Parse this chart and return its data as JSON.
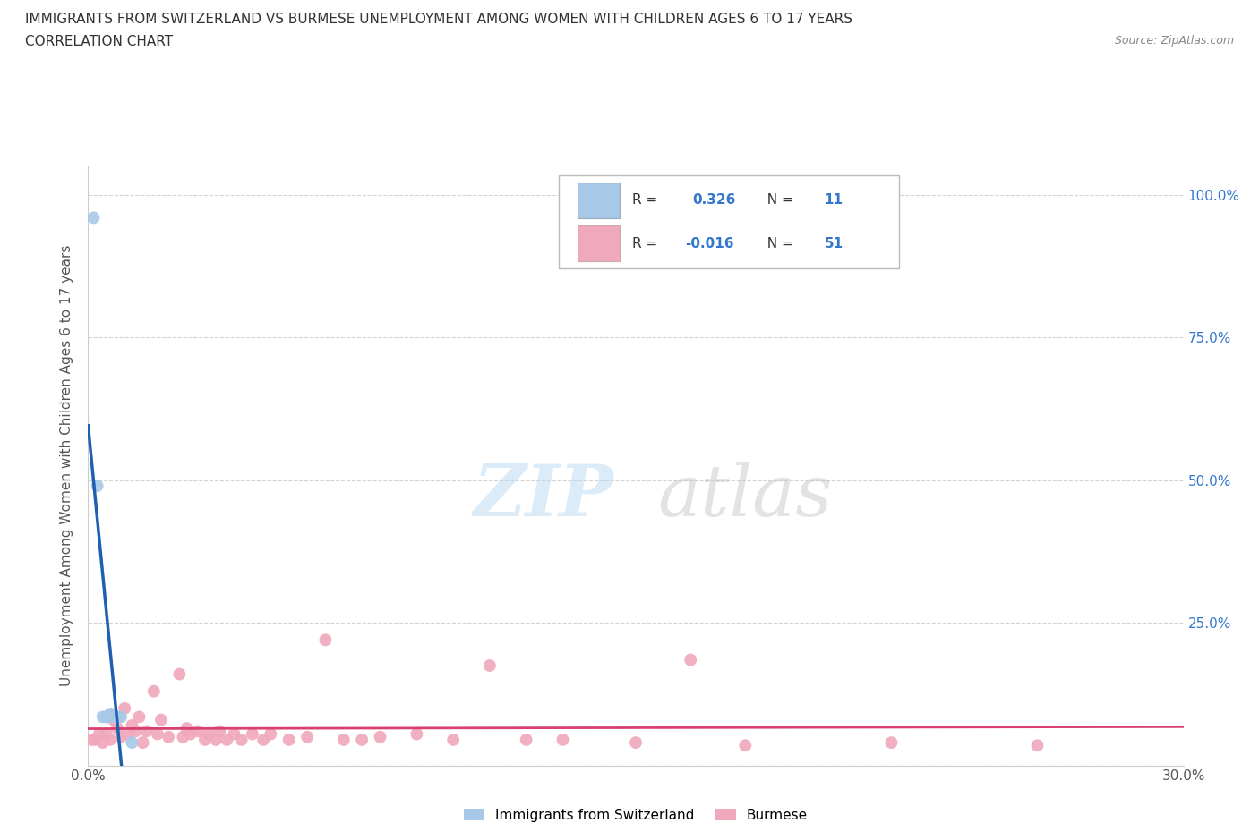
{
  "title_line1": "IMMIGRANTS FROM SWITZERLAND VS BURMESE UNEMPLOYMENT AMONG WOMEN WITH CHILDREN AGES 6 TO 17 YEARS",
  "title_line2": "CORRELATION CHART",
  "source": "Source: ZipAtlas.com",
  "ylabel": "Unemployment Among Women with Children Ages 6 to 17 years",
  "xlim": [
    0.0,
    0.3
  ],
  "ylim": [
    0.0,
    1.05
  ],
  "swiss_color": "#a8c8e8",
  "burmese_color": "#f0a8bc",
  "swiss_trend_color": "#2060b0",
  "burmese_trend_color": "#d84070",
  "swiss_r": 0.326,
  "swiss_n": 11,
  "burmese_r": -0.016,
  "burmese_n": 51,
  "legend_label1": "Immigrants from Switzerland",
  "legend_label2": "Burmese",
  "swiss_x": [
    0.0015,
    0.0025,
    0.004,
    0.005,
    0.0055,
    0.006,
    0.0065,
    0.007,
    0.008,
    0.009,
    0.012
  ],
  "swiss_y": [
    0.96,
    0.49,
    0.085,
    0.085,
    0.085,
    0.09,
    0.09,
    0.085,
    0.085,
    0.085,
    0.04
  ],
  "burmese_x": [
    0.001,
    0.002,
    0.003,
    0.004,
    0.005,
    0.006,
    0.007,
    0.008,
    0.009,
    0.01,
    0.011,
    0.012,
    0.013,
    0.014,
    0.015,
    0.016,
    0.018,
    0.019,
    0.02,
    0.022,
    0.025,
    0.026,
    0.027,
    0.028,
    0.03,
    0.032,
    0.033,
    0.035,
    0.036,
    0.038,
    0.04,
    0.042,
    0.045,
    0.048,
    0.05,
    0.055,
    0.06,
    0.065,
    0.07,
    0.075,
    0.08,
    0.09,
    0.1,
    0.11,
    0.12,
    0.13,
    0.15,
    0.165,
    0.18,
    0.22,
    0.26
  ],
  "burmese_y": [
    0.045,
    0.045,
    0.055,
    0.04,
    0.055,
    0.045,
    0.08,
    0.065,
    0.05,
    0.1,
    0.055,
    0.07,
    0.06,
    0.085,
    0.04,
    0.06,
    0.13,
    0.055,
    0.08,
    0.05,
    0.16,
    0.05,
    0.065,
    0.055,
    0.06,
    0.045,
    0.055,
    0.045,
    0.06,
    0.045,
    0.055,
    0.045,
    0.055,
    0.045,
    0.055,
    0.045,
    0.05,
    0.22,
    0.045,
    0.045,
    0.05,
    0.055,
    0.045,
    0.175,
    0.045,
    0.045,
    0.04,
    0.185,
    0.035,
    0.04,
    0.035
  ]
}
